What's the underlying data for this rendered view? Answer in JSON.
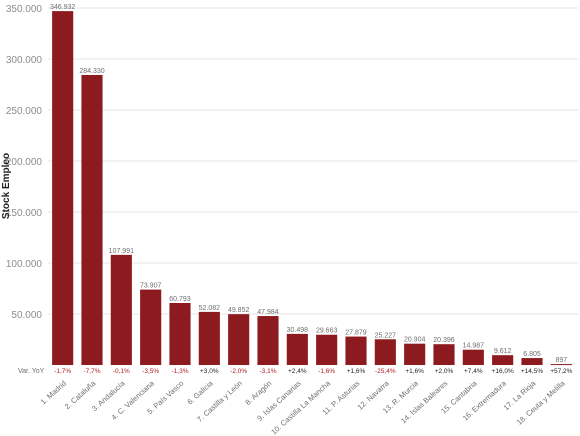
{
  "chart_data": {
    "type": "bar",
    "ylabel": "Stock Empleo",
    "row_label": "Var. YoY",
    "y_ticks": [
      "350.000",
      "300.000",
      "250.000",
      "200.000",
      "150.000",
      "100.000",
      "50.000"
    ],
    "ylim": [
      0,
      350000
    ],
    "grid": true,
    "categories": [
      "1. Madrid",
      "2. Cataluña",
      "3. Andalucía",
      "4. C. Valenciana",
      "5. País Vasco",
      "6. Galicia",
      "7. Castilla y León",
      "8. Aragón",
      "9. Islas Canarias",
      "10. Castilla La Mancha",
      "11. P. Asturias",
      "12. Navarra",
      "13. R. Murcia",
      "14. Islas Baleares",
      "15. Cantabria",
      "16. Extremadura",
      "17. La Rioja",
      "18. Ceuta y Melilla"
    ],
    "values": [
      346932,
      284330,
      107991,
      73907,
      60793,
      52082,
      49852,
      47984,
      30498,
      29663,
      27879,
      25227,
      20904,
      20396,
      14987,
      9612,
      6805,
      897
    ],
    "value_labels": [
      "346.932",
      "284.330",
      "107.991",
      "73.907",
      "60.793",
      "52.082",
      "49.852",
      "47.984",
      "30.498",
      "29.663",
      "27.879",
      "25.227",
      "20.904",
      "20.396",
      "14.987",
      "9.612",
      "6.805",
      "897"
    ],
    "yoy": [
      "-1,7%",
      "-7,7%",
      "-0,1%",
      "-3,5%",
      "-1,3%",
      "+3,0%",
      "-2,0%",
      "-3,1%",
      "+2,4%",
      "-1,6%",
      "+1,6%",
      "-25,4%",
      "+1,6%",
      "+2,0%",
      "+7,4%",
      "+16,0%",
      "+14,5%",
      "+57,2%"
    ],
    "colors": {
      "bar": "#8c1a1f",
      "negative": "#b01c22",
      "positive": "#1f1f1f",
      "grid": "#e6e6e6"
    }
  }
}
